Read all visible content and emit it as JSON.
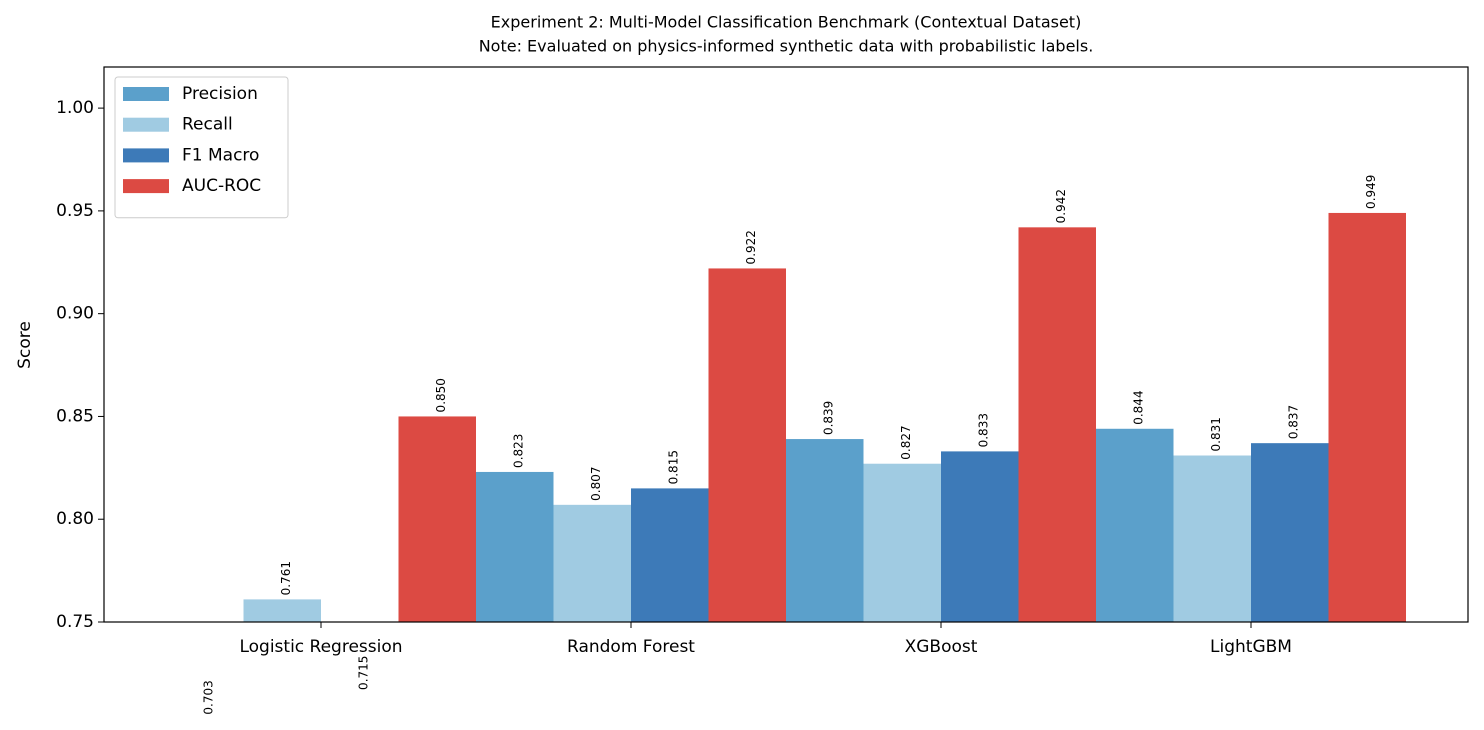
{
  "chart_data": {
    "type": "bar",
    "title": "Experiment 2: Multi-Model Classification Benchmark (Contextual Dataset)",
    "subtitle": "Note: Evaluated on physics-informed synthetic data with probabilistic labels.",
    "y_label": "Score",
    "categories": [
      "Logistic Regression",
      "Random Forest",
      "XGBoost",
      "LightGBM"
    ],
    "series": [
      {
        "name": "Precision",
        "color": "#5ba0cb",
        "values": [
          0.703,
          0.823,
          0.839,
          0.844
        ],
        "value_labels": [
          "0.703",
          "0.823",
          "0.839",
          "0.844"
        ]
      },
      {
        "name": "Recall",
        "color": "#a0cbe2",
        "values": [
          0.761,
          0.807,
          0.827,
          0.831
        ],
        "value_labels": [
          "0.761",
          "0.807",
          "0.827",
          "0.831"
        ]
      },
      {
        "name": "F1 Macro",
        "color": "#3d7ab8",
        "values": [
          0.715,
          0.815,
          0.833,
          0.837
        ],
        "value_labels": [
          "0.715",
          "0.815",
          "0.833",
          "0.837"
        ]
      },
      {
        "name": "AUC-ROC",
        "color": "#dc4a43",
        "values": [
          0.85,
          0.922,
          0.942,
          0.949
        ],
        "value_labels": [
          "0.850",
          "0.922",
          "0.942",
          "0.949"
        ]
      }
    ],
    "ylim": [
      0.75,
      1.02
    ],
    "yticks": [
      0.75,
      {
        "value": 0.8,
        "label": "0.80"
      },
      0.85,
      {
        "value": 0.9,
        "label": "0.90"
      },
      0.95,
      {
        "value": 1.0,
        "label": "1.00"
      }
    ],
    "legend": "upper left"
  }
}
